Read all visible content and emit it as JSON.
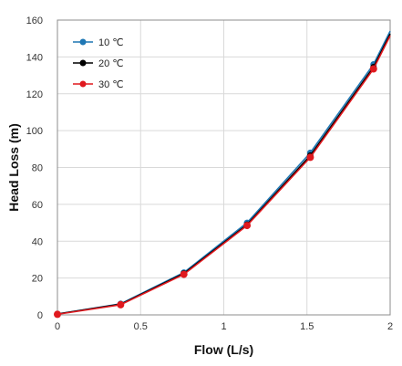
{
  "chart_data": {
    "type": "line",
    "title": "",
    "xlabel": "Flow (L/s)",
    "ylabel": "Head Loss (m)",
    "xlim": [
      0,
      2
    ],
    "ylim": [
      0,
      160
    ],
    "x_ticks": [
      0,
      0.5,
      1,
      1.5,
      2
    ],
    "x_tick_labels": [
      "0",
      "0.5",
      "1",
      "1.5",
      "2"
    ],
    "y_ticks": [
      0,
      20,
      40,
      60,
      80,
      100,
      120,
      140,
      160
    ],
    "y_tick_labels": [
      "0",
      "20",
      "40",
      "60",
      "80",
      "100",
      "120",
      "140",
      "160"
    ],
    "grid": true,
    "legend_position": "top-left",
    "series": [
      {
        "name": "10 ℃",
        "color": "#1f77b4",
        "x": [
          0,
          0.38,
          0.76,
          1.14,
          1.52,
          1.9,
          2.0
        ],
        "y": [
          0.5,
          6.0,
          23.0,
          50.0,
          88.0,
          136.0,
          154.0
        ]
      },
      {
        "name": "20 ℃",
        "color": "#000000",
        "x": [
          0,
          0.38,
          0.76,
          1.14,
          1.52,
          1.9,
          2.0
        ],
        "y": [
          0.5,
          5.8,
          22.5,
          49.0,
          86.5,
          134.5,
          152.5
        ]
      },
      {
        "name": "30 ℃",
        "color": "#e0191f",
        "x": [
          0,
          0.38,
          0.76,
          1.14,
          1.52,
          1.9,
          2.0
        ],
        "y": [
          0.3,
          5.5,
          22.0,
          48.5,
          85.5,
          133.5,
          151.5
        ]
      }
    ]
  }
}
